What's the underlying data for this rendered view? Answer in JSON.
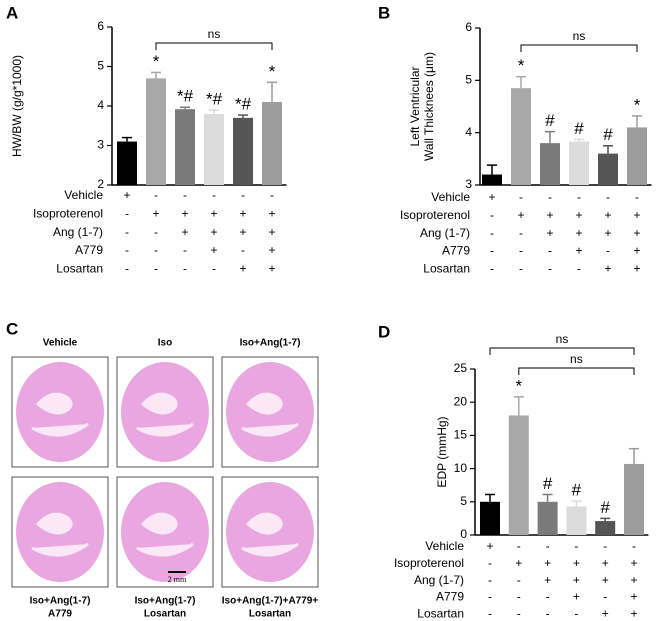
{
  "chart_data": [
    {
      "type": "bar",
      "panel": "A",
      "ylabel": [
        "HW/BW (g/g*1000)"
      ],
      "values": [
        3.1,
        4.7,
        3.92,
        3.8,
        3.7,
        4.1
      ],
      "errors": [
        0.1,
        0.15,
        0.05,
        0.1,
        0.07,
        0.5
      ],
      "colors": [
        "#000000",
        "#a8a8a8",
        "#7a7a7a",
        "#dcdcdc",
        "#555555",
        "#9c9c9c"
      ],
      "markers": [
        null,
        "*",
        "*#",
        "*#",
        "*#",
        "*"
      ],
      "brackets": [
        {
          "from": 1,
          "to": 5,
          "label": "ns"
        }
      ],
      "ylim": [
        2,
        6
      ],
      "yticks": [
        2,
        3,
        4,
        5,
        6
      ],
      "conditions": [
        {
          "name": "Vehicle",
          "signs": [
            "+",
            "-",
            "-",
            "-",
            "-",
            "-"
          ]
        },
        {
          "name": "Isoproterenol",
          "signs": [
            "-",
            "+",
            "+",
            "+",
            "+",
            "+"
          ]
        },
        {
          "name": "Ang (1-7)",
          "signs": [
            "-",
            "-",
            "+",
            "+",
            "+",
            "+"
          ]
        },
        {
          "name": "A779",
          "signs": [
            "-",
            "-",
            "-",
            "+",
            "-",
            "+"
          ]
        },
        {
          "name": "Losartan",
          "signs": [
            "-",
            "-",
            "-",
            "-",
            "+",
            "+"
          ]
        }
      ]
    },
    {
      "type": "bar",
      "panel": "B",
      "ylabel": [
        "Left Ventricular",
        "Wall Thicknees (μm)"
      ],
      "values": [
        3.2,
        4.85,
        3.8,
        3.83,
        3.6,
        4.1
      ],
      "errors": [
        0.18,
        0.22,
        0.22,
        0.04,
        0.15,
        0.22
      ],
      "colors": [
        "#000000",
        "#a8a8a8",
        "#7a7a7a",
        "#dcdcdc",
        "#555555",
        "#9c9c9c"
      ],
      "markers": [
        null,
        "*",
        "#",
        "#",
        "#",
        "*"
      ],
      "brackets": [
        {
          "from": 1,
          "to": 5,
          "label": "ns"
        }
      ],
      "ylim": [
        3,
        6
      ],
      "yticks": [
        3,
        4,
        5,
        6
      ],
      "conditions": [
        {
          "name": "Vehicle",
          "signs": [
            "+",
            "-",
            "-",
            "-",
            "-",
            "-"
          ]
        },
        {
          "name": "Isoproterenol",
          "signs": [
            "-",
            "+",
            "+",
            "+",
            "+",
            "+"
          ]
        },
        {
          "name": "Ang (1-7)",
          "signs": [
            "-",
            "-",
            "+",
            "+",
            "+",
            "+"
          ]
        },
        {
          "name": "A779",
          "signs": [
            "-",
            "-",
            "-",
            "+",
            "-",
            "+"
          ]
        },
        {
          "name": "Losartan",
          "signs": [
            "-",
            "-",
            "-",
            "-",
            "+",
            "+"
          ]
        }
      ]
    },
    {
      "type": "bar",
      "panel": "D",
      "ylabel": [
        "EDP (mmHg)"
      ],
      "values": [
        5,
        18,
        5,
        4.3,
        2.1,
        10.7
      ],
      "errors": [
        1.1,
        2.8,
        1.1,
        0.8,
        0.4,
        2.3
      ],
      "colors": [
        "#000000",
        "#a8a8a8",
        "#7a7a7a",
        "#dcdcdc",
        "#555555",
        "#9c9c9c"
      ],
      "markers": [
        null,
        "*",
        "#",
        "#",
        "#",
        null
      ],
      "brackets": [
        {
          "from": 0,
          "to": 5,
          "label": "ns"
        },
        {
          "from": 1,
          "to": 5,
          "label": "ns"
        }
      ],
      "ylim": [
        0,
        25
      ],
      "yticks": [
        0,
        5,
        10,
        15,
        20,
        25
      ],
      "conditions": [
        {
          "name": "Vehicle",
          "signs": [
            "+",
            "-",
            "-",
            "-",
            "-",
            "-"
          ]
        },
        {
          "name": "Isoproterenol",
          "signs": [
            "-",
            "+",
            "+",
            "+",
            "+",
            "+"
          ]
        },
        {
          "name": "Ang (1-7)",
          "signs": [
            "-",
            "-",
            "+",
            "+",
            "+",
            "+"
          ]
        },
        {
          "name": "A779",
          "signs": [
            "-",
            "-",
            "-",
            "+",
            "-",
            "+"
          ]
        },
        {
          "name": "Losartan",
          "signs": [
            "-",
            "-",
            "-",
            "-",
            "+",
            "+"
          ]
        }
      ]
    }
  ],
  "panel_c": {
    "panel": "C",
    "images": [
      {
        "label": [
          "Vehicle"
        ]
      },
      {
        "label": [
          "Iso"
        ]
      },
      {
        "label": [
          "Iso+Ang(1-7)"
        ]
      },
      {
        "label": [
          "Iso+Ang(1-7)",
          "A779"
        ]
      },
      {
        "label": [
          "Iso+Ang(1-7)",
          "Losartan"
        ]
      },
      {
        "label": [
          "Iso+Ang(1-7)+A779+",
          "Losartan"
        ]
      }
    ],
    "scale_bar": "2 mm"
  }
}
